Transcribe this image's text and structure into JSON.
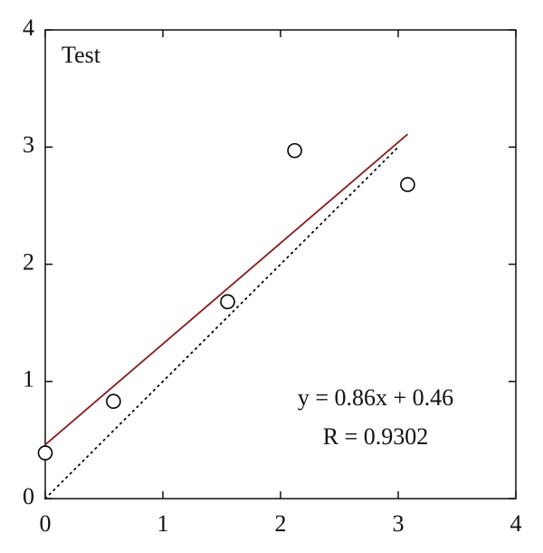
{
  "chart_data": {
    "type": "scatter",
    "label": "Test",
    "annotations": [
      "y = 0.86x + 0.46",
      "R = 0.9302"
    ],
    "x": [
      0,
      0.58,
      1.55,
      2.12,
      3.08
    ],
    "series": [
      {
        "color": "#000000",
        "values": [
          0.39,
          0.83,
          1.68,
          2.97,
          2.68
        ]
      }
    ],
    "fit_line": {
      "color": "#8b1a1a",
      "x": [
        0,
        3.08
      ],
      "y": [
        0.46,
        3.11
      ]
    },
    "identity_line": {
      "color": "#000000",
      "style": "dotted",
      "x": [
        0,
        3
      ],
      "y": [
        0,
        3
      ]
    },
    "xlim": [
      0,
      4
    ],
    "ylim": [
      0,
      4
    ],
    "xticks": [
      0,
      1,
      2,
      3,
      4
    ],
    "yticks": [
      0,
      1,
      2,
      3,
      4
    ],
    "grid": false
  }
}
